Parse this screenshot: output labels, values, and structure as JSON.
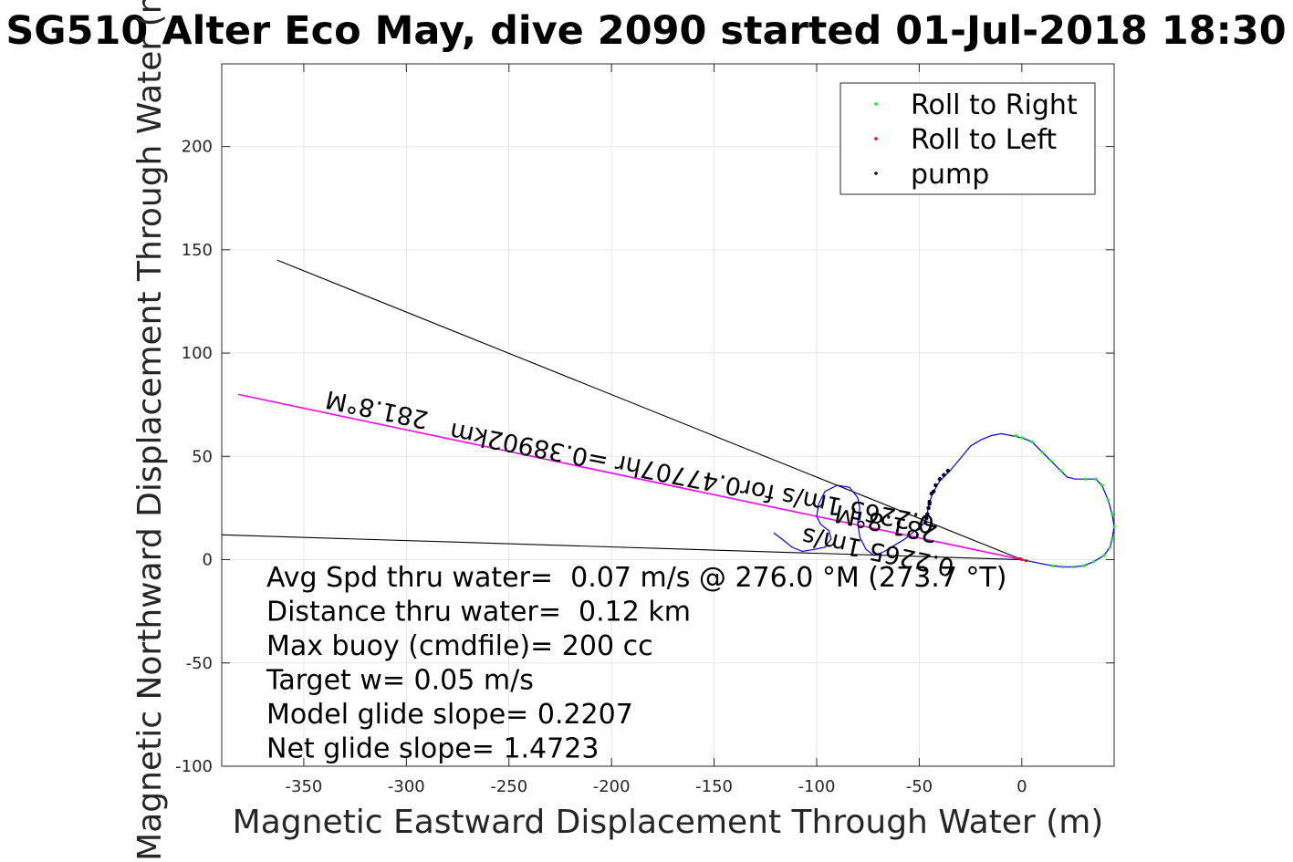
{
  "chart_data": {
    "type": "line",
    "title": "SG510 Alter Eco May, dive 2090 started 01-Jul-2018 18:30",
    "xlabel": "Magnetic Eastward Displacement Through Water (m)",
    "ylabel": "Magnetic Northward Displacement Through Water (m)",
    "xlim": [
      -390,
      45
    ],
    "ylim": [
      -100,
      240
    ],
    "xticks": [
      -350,
      -300,
      -250,
      -200,
      -150,
      -100,
      -50,
      0
    ],
    "yticks": [
      -100,
      -50,
      0,
      50,
      100,
      150,
      200
    ],
    "grid": true,
    "legend": {
      "placement": "top-right",
      "entries": [
        {
          "label": "Roll to Right",
          "color": "#00ff00"
        },
        {
          "label": "Roll to Left",
          "color": "#ff0000"
        },
        {
          "label": "pump",
          "color": "#000033"
        }
      ]
    },
    "track": {
      "color": "#0000ff",
      "points": [
        [
          0,
          0
        ],
        [
          5,
          -1
        ],
        [
          10,
          -2
        ],
        [
          15,
          -3
        ],
        [
          20,
          -3.5
        ],
        [
          25,
          -3.5
        ],
        [
          30,
          -3
        ],
        [
          35,
          -1
        ],
        [
          40,
          2
        ],
        [
          43,
          6
        ],
        [
          44,
          10
        ],
        [
          45,
          16
        ],
        [
          44,
          22
        ],
        [
          42,
          29
        ],
        [
          39,
          36
        ],
        [
          36,
          39
        ],
        [
          31,
          39
        ],
        [
          26,
          39
        ],
        [
          22,
          40
        ],
        [
          19,
          43
        ],
        [
          14,
          48
        ],
        [
          10,
          52
        ],
        [
          5,
          57
        ],
        [
          0,
          59
        ],
        [
          -5,
          60
        ],
        [
          -10,
          61
        ],
        [
          -15,
          60
        ],
        [
          -20,
          58
        ],
        [
          -25,
          55
        ],
        [
          -30,
          49
        ],
        [
          -35,
          43
        ],
        [
          -40,
          38
        ],
        [
          -43,
          33
        ],
        [
          -45,
          28
        ],
        [
          -46,
          23
        ],
        [
          -47,
          18
        ],
        [
          -52,
          14
        ],
        [
          -57,
          10
        ],
        [
          -62,
          7
        ],
        [
          -67,
          4
        ],
        [
          -72,
          2
        ],
        [
          -76,
          5
        ],
        [
          -79,
          11
        ],
        [
          -80,
          18
        ],
        [
          -79,
          25
        ],
        [
          -80,
          30
        ],
        [
          -84,
          35
        ],
        [
          -90,
          36
        ],
        [
          -96,
          33
        ],
        [
          -99,
          27
        ],
        [
          -100,
          21
        ],
        [
          -98,
          17
        ],
        [
          -94,
          14
        ],
        [
          -93,
          10
        ],
        [
          -96,
          6
        ],
        [
          -101,
          5
        ],
        [
          -107,
          4
        ],
        [
          -112,
          6
        ],
        [
          -117,
          10
        ],
        [
          -121,
          13
        ]
      ]
    },
    "pump_points": [
      [
        -36,
        43
      ],
      [
        -38,
        41
      ],
      [
        -40,
        39
      ],
      [
        -42,
        36
      ],
      [
        -44,
        32
      ],
      [
        -45,
        28
      ],
      [
        -45.5,
        25
      ],
      [
        -46,
        22
      ],
      [
        -46.5,
        20
      ],
      [
        -47,
        18
      ],
      [
        -45,
        27
      ],
      [
        -43,
        33
      ]
    ],
    "roll_right_points": [
      [
        -3,
        60
      ],
      [
        0,
        59
      ],
      [
        5,
        57
      ],
      [
        10,
        52
      ],
      [
        14,
        48
      ],
      [
        19,
        43
      ],
      [
        31,
        39
      ],
      [
        36,
        39
      ],
      [
        39,
        36
      ],
      [
        42,
        29
      ],
      [
        44,
        22
      ],
      [
        45,
        16
      ],
      [
        44,
        10
      ],
      [
        43,
        6
      ],
      [
        40,
        2
      ],
      [
        35,
        -1
      ],
      [
        30,
        -3
      ],
      [
        25,
        -3.5
      ],
      [
        20,
        -3.5
      ],
      [
        15,
        -3
      ]
    ],
    "roll_left_points": [
      [
        0,
        0
      ],
      [
        2,
        -0.5
      ],
      [
        -1,
        0.5
      ]
    ],
    "reference_lines": [
      {
        "name": "black-upper",
        "color": "#000000",
        "points": [
          [
            0,
            0
          ],
          [
            -363,
            145
          ]
        ]
      },
      {
        "name": "black-lower",
        "color": "#000000",
        "points": [
          [
            0,
            0
          ],
          [
            -390,
            12
          ]
        ]
      },
      {
        "name": "magenta-heading",
        "color": "#ff00ff",
        "points": [
          [
            0,
            0
          ],
          [
            -382,
            80
          ]
        ]
      }
    ],
    "line_labels": [
      {
        "text": "281.8°M",
        "at": [
          -270,
          75
        ],
        "angle": 0
      },
      {
        "text": "0.2265 1m/s for0.47707hr =0.38902km",
        "at": [
          -190,
          44
        ],
        "angle": 0
      },
      {
        "text": "281.8°M",
        "at": [
          -100,
          22
        ],
        "angle": 0
      },
      {
        "text": "0.2265 1m/s",
        "at": [
          -95,
          6
        ],
        "angle": 0
      }
    ],
    "annotations": [
      "Avg Spd thru water=  0.07 m/s @ 276.0 °M (273.7 °T)",
      "Distance thru water=  0.12 km",
      "Max buoy (cmdfile)= 200 cc",
      "Target w= 0.05 m/s",
      "Model glide slope= 0.2207",
      "Net glide slope= 1.4723"
    ]
  }
}
